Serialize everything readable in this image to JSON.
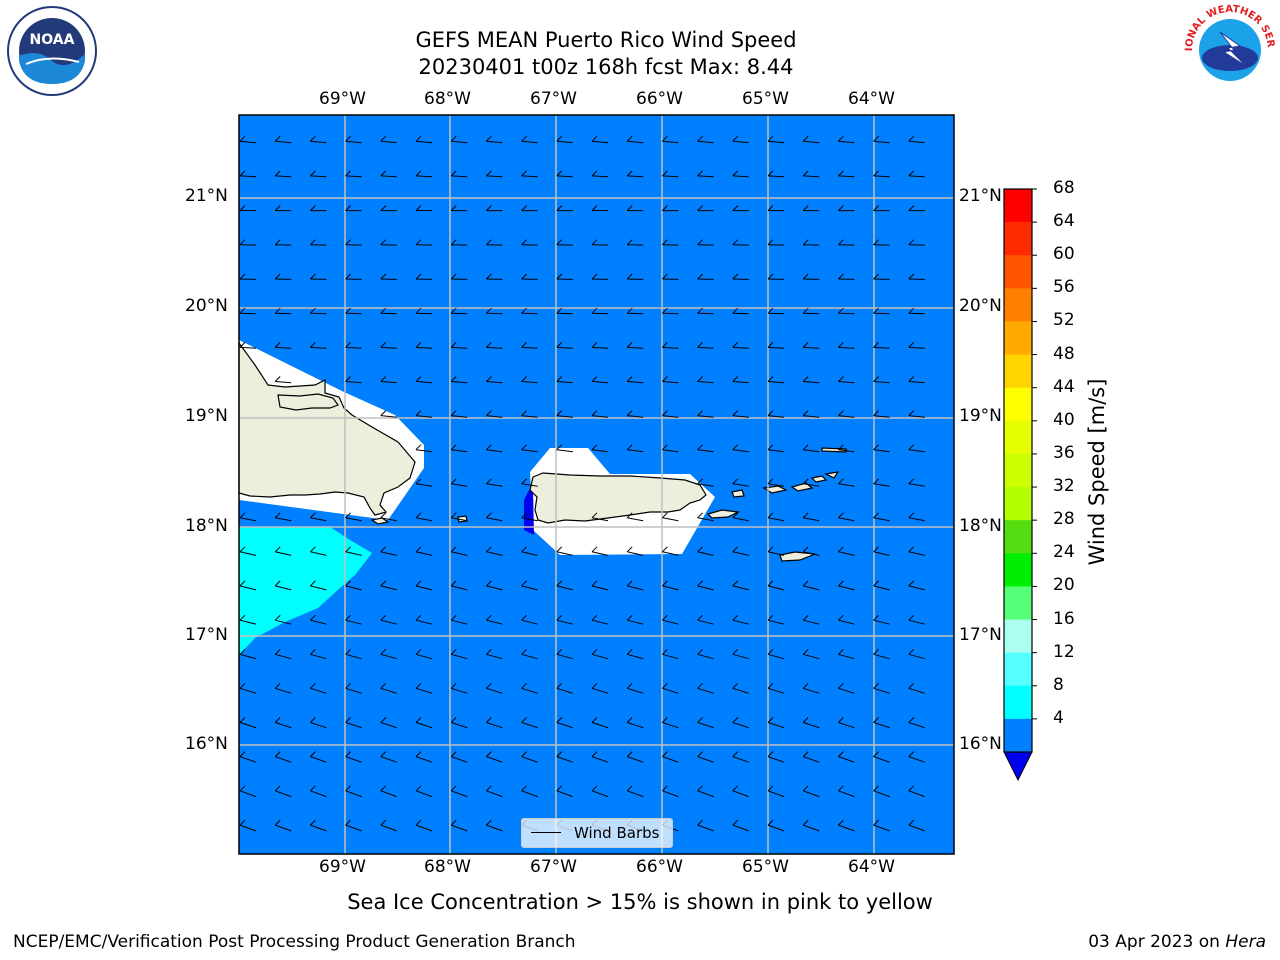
{
  "title_line1": "GEFS MEAN Puerto Rico Wind Speed",
  "title_line2": "20230401 t00z 168h fcst   Max: 8.44",
  "lon_labels": [
    "69°W",
    "68°W",
    "67°W",
    "66°W",
    "65°W",
    "64°W"
  ],
  "lat_labels": [
    "21°N",
    "20°N",
    "19°N",
    "18°N",
    "17°N",
    "16°N"
  ],
  "legend_label": "Wind Barbs",
  "colorbar": {
    "label": "Wind Speed [m/s]",
    "ticks": [
      "68",
      "64",
      "60",
      "56",
      "52",
      "48",
      "44",
      "40",
      "36",
      "32",
      "28",
      "24",
      "20",
      "16",
      "12",
      "8",
      "4"
    ],
    "colors": [
      "#ff0000",
      "#ff2a00",
      "#ff5500",
      "#ff8000",
      "#ffaa00",
      "#ffd400",
      "#ffff00",
      "#e6ff00",
      "#ccff00",
      "#b3ff00",
      "#55dd11",
      "#00ee00",
      "#55ff77",
      "#aaffee",
      "#55ffff",
      "#00ffff",
      "#0080ff"
    ],
    "under_color": "#0000ee"
  },
  "colors": {
    "ocean": "#0080ff",
    "land": "#eeeedd",
    "calm_zone": "#ffffff",
    "high_wind_zone": "#00ffff",
    "grid": "#c0c0c0"
  },
  "note": "Sea Ice Concentration > 15% is shown in pink to yellow",
  "footer_left": "NCEP/EMC/Verification Post Processing Product Generation Branch",
  "footer_right_date": "03 Apr 2023 on ",
  "footer_right_system": "Hera",
  "logo_left": "NOAA",
  "logo_right": "NATIONAL WEATHER SERVICE"
}
